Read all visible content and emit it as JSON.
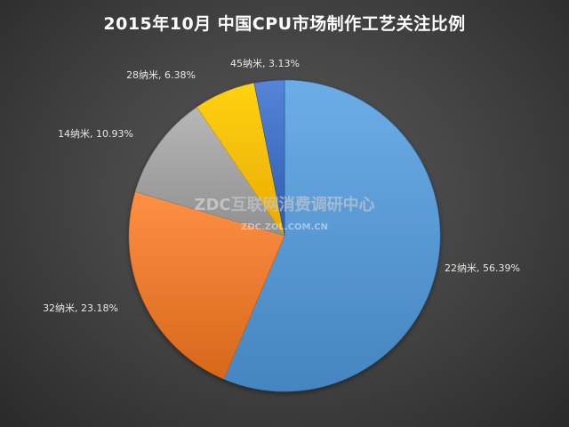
{
  "chart_data": {
    "type": "pie",
    "title": "2015年10月  中国CPU市场制作工艺关注比例",
    "slices": [
      {
        "label": "22纳米",
        "value": 56.39,
        "data_label": "22纳米, 56.39%",
        "color": "#5b9bd5"
      },
      {
        "label": "32纳米",
        "value": 23.18,
        "data_label": "32纳米, 23.18%",
        "color": "#ed7d31"
      },
      {
        "label": "14纳米",
        "value": 10.93,
        "data_label": "14纳米, 10.93%",
        "color": "#a5a5a5"
      },
      {
        "label": "28纳米",
        "value": 6.38,
        "data_label": "28纳米, 6.38%",
        "color": "#ffc000"
      },
      {
        "label": "45纳米",
        "value": 3.13,
        "data_label": "45纳米, 3.13%",
        "color": "#4472c4"
      }
    ],
    "start_angle_deg": 0,
    "direction": "clockwise",
    "legend": "none"
  },
  "watermark": {
    "main": "ZDC互联网消费调研中心",
    "sub": "ZDC.ZOL.COM.CN"
  },
  "colors": {
    "background": "#404040",
    "title": "#ffffff",
    "label": "#e8e8e8"
  }
}
